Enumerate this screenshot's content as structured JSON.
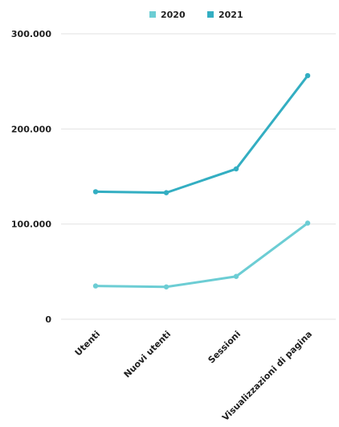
{
  "chart_data": {
    "type": "line",
    "title": "",
    "xlabel": "",
    "ylabel": "",
    "categories": [
      "Utenti",
      "Nuovi utenti",
      "Sessioni",
      "Visualizzazioni di pagina"
    ],
    "series": [
      {
        "name": "2020",
        "color": "#6ccdd4",
        "values": [
          35000,
          34000,
          45000,
          101000
        ]
      },
      {
        "name": "2021",
        "color": "#33aec2",
        "values": [
          134000,
          133000,
          158000,
          256000
        ]
      }
    ],
    "ylim": [
      0,
      300000
    ],
    "yticks": [
      {
        "value": 0,
        "label": "0"
      },
      {
        "value": 100000,
        "label": "100.000"
      },
      {
        "value": 200000,
        "label": "200.000"
      },
      {
        "value": 300000,
        "label": "300.000"
      }
    ],
    "grid": true,
    "legend": "top"
  }
}
